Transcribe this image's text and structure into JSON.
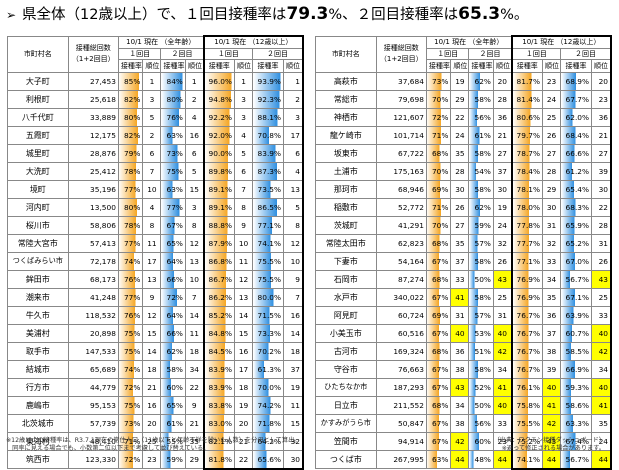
{
  "headline": {
    "arrow": "➢",
    "prefix": "県全体（12歳以上）で、",
    "dose1_label": "１回目接種率は",
    "dose1_value": "79.3",
    "sep": "%、",
    "dose2_label": "２回目接種率は",
    "dose2_value": "65.3",
    "suffix": "%。"
  },
  "table_headers": {
    "col_name": "市町村名",
    "col_pop": "接種総回数\n（1+2回目）",
    "all_age": "10/1 現在 （全年齢）",
    "age12": "10/1 現在 （12歳以上）",
    "dose1": "１回目",
    "dose2": "２回目",
    "rate": "接種率",
    "rank": "順位"
  },
  "colors": {
    "dose1_fill": "#f5a623",
    "dose2_fill": "#2f8fe0",
    "highlight": "#ffff00"
  },
  "left_rows": [
    {
      "name": "大子町",
      "pop": "27,453",
      "a1": "85%",
      "a1r": "1",
      "a2": "84%",
      "a2r": "1",
      "b1": "96.0%",
      "b1r": "1",
      "b2": "93.9%",
      "b2r": "1",
      "v1": 85,
      "v2": 84,
      "v3": 96.0,
      "v4": 93.9
    },
    {
      "name": "利根町",
      "pop": "25,618",
      "a1": "82%",
      "a1r": "3",
      "a2": "80%",
      "a2r": "2",
      "b1": "94.8%",
      "b1r": "3",
      "b2": "92.3%",
      "b2r": "2",
      "v1": 82,
      "v2": 80,
      "v3": 94.8,
      "v4": 92.3
    },
    {
      "name": "八千代町",
      "pop": "33,889",
      "a1": "80%",
      "a1r": "5",
      "a2": "76%",
      "a2r": "4",
      "b1": "92.2%",
      "b1r": "3",
      "b2": "88.1%",
      "b2r": "3",
      "v1": 80,
      "v2": 76,
      "v3": 92.2,
      "v4": 88.1
    },
    {
      "name": "五霞町",
      "pop": "12,175",
      "a1": "82%",
      "a1r": "2",
      "a2": "63%",
      "a2r": "16",
      "b1": "92.0%",
      "b1r": "4",
      "b2": "70.8%",
      "b2r": "17",
      "v1": 82,
      "v2": 63,
      "v3": 92.0,
      "v4": 70.8
    },
    {
      "name": "城里町",
      "pop": "28,876",
      "a1": "79%",
      "a1r": "6",
      "a2": "73%",
      "a2r": "6",
      "b1": "90.0%",
      "b1r": "5",
      "b2": "83.9%",
      "b2r": "6",
      "v1": 79,
      "v2": 73,
      "v3": 90.0,
      "v4": 83.9
    },
    {
      "name": "大洗町",
      "pop": "25,412",
      "a1": "78%",
      "a1r": "7",
      "a2": "75%",
      "a2r": "5",
      "b1": "89.8%",
      "b1r": "6",
      "b2": "87.3%",
      "b2r": "4",
      "v1": 78,
      "v2": 75,
      "v3": 89.8,
      "v4": 87.3
    },
    {
      "name": "境町",
      "pop": "35,196",
      "a1": "77%",
      "a1r": "10",
      "a2": "63%",
      "a2r": "15",
      "b1": "89.1%",
      "b1r": "7",
      "b2": "73.5%",
      "b2r": "13",
      "v1": 77,
      "v2": 63,
      "v3": 89.1,
      "v4": 73.5
    },
    {
      "name": "河内町",
      "pop": "13,500",
      "a1": "80%",
      "a1r": "4",
      "a2": "77%",
      "a2r": "3",
      "b1": "89.1%",
      "b1r": "8",
      "b2": "86.5%",
      "b2r": "5",
      "v1": 80,
      "v2": 77,
      "v3": 89.1,
      "v4": 86.5
    },
    {
      "name": "桜川市",
      "pop": "58,806",
      "a1": "78%",
      "a1r": "8",
      "a2": "67%",
      "a2r": "8",
      "b1": "88.8%",
      "b1r": "9",
      "b2": "77.1%",
      "b2r": "8",
      "v1": 78,
      "v2": 67,
      "v3": 88.8,
      "v4": 77.1
    },
    {
      "name": "常陸大宮市",
      "pop": "57,413",
      "a1": "77%",
      "a1r": "11",
      "a2": "65%",
      "a2r": "12",
      "b1": "87.9%",
      "b1r": "10",
      "b2": "74.1%",
      "b2r": "12",
      "v1": 77,
      "v2": 65,
      "v3": 87.9,
      "v4": 74.1
    },
    {
      "name": "つくばみらい市",
      "pop": "72,178",
      "a1": "74%",
      "a1r": "17",
      "a2": "64%",
      "a2r": "13",
      "b1": "86.8%",
      "b1r": "11",
      "b2": "75.5%",
      "b2r": "10",
      "v1": 74,
      "v2": 64,
      "v3": 86.8,
      "v4": 75.5
    },
    {
      "name": "鉾田市",
      "pop": "68,173",
      "a1": "76%",
      "a1r": "13",
      "a2": "66%",
      "a2r": "10",
      "b1": "86.7%",
      "b1r": "12",
      "b2": "75.5%",
      "b2r": "9",
      "v1": 76,
      "v2": 66,
      "v3": 86.7,
      "v4": 75.5
    },
    {
      "name": "潮来市",
      "pop": "41,248",
      "a1": "77%",
      "a1r": "9",
      "a2": "72%",
      "a2r": "7",
      "b1": "86.2%",
      "b1r": "13",
      "b2": "80.0%",
      "b2r": "7",
      "v1": 77,
      "v2": 72,
      "v3": 86.2,
      "v4": 80.0
    },
    {
      "name": "牛久市",
      "pop": "118,532",
      "a1": "76%",
      "a1r": "12",
      "a2": "64%",
      "a2r": "14",
      "b1": "85.2%",
      "b1r": "14",
      "b2": "71.5%",
      "b2r": "16",
      "v1": 76,
      "v2": 64,
      "v3": 85.2,
      "v4": 71.5
    },
    {
      "name": "美浦村",
      "pop": "20,898",
      "a1": "75%",
      "a1r": "15",
      "a2": "66%",
      "a2r": "11",
      "b1": "84.8%",
      "b1r": "15",
      "b2": "73.3%",
      "b2r": "14",
      "v1": 75,
      "v2": 66,
      "v3": 84.8,
      "v4": 73.3
    },
    {
      "name": "取手市",
      "pop": "147,533",
      "a1": "75%",
      "a1r": "14",
      "a2": "62%",
      "a2r": "18",
      "b1": "84.5%",
      "b1r": "16",
      "b2": "70.2%",
      "b2r": "18",
      "v1": 75,
      "v2": 62,
      "v3": 84.5,
      "v4": 70.2
    },
    {
      "name": "結城市",
      "pop": "65,689",
      "a1": "74%",
      "a1r": "18",
      "a2": "58%",
      "a2r": "34",
      "b1": "83.9%",
      "b1r": "17",
      "b2": "61.3%",
      "b2r": "37",
      "v1": 74,
      "v2": 58,
      "v3": 83.9,
      "v4": 61.3
    },
    {
      "name": "行方市",
      "pop": "44,779",
      "a1": "72%",
      "a1r": "21",
      "a2": "60%",
      "a2r": "22",
      "b1": "83.9%",
      "b1r": "18",
      "b2": "70.0%",
      "b2r": "19",
      "v1": 72,
      "v2": 60,
      "v3": 83.9,
      "v4": 70.0
    },
    {
      "name": "鹿嶋市",
      "pop": "95,153",
      "a1": "75%",
      "a1r": "16",
      "a2": "65%",
      "a2r": "9",
      "b1": "83.8%",
      "b1r": "19",
      "b2": "74.2%",
      "b2r": "11",
      "v1": 75,
      "v2": 65,
      "v3": 83.8,
      "v4": 74.2
    },
    {
      "name": "北茨城市",
      "pop": "57,739",
      "a1": "73%",
      "a1r": "20",
      "a2": "61%",
      "a2r": "21",
      "b1": "83.0%",
      "b1r": "20",
      "b2": "71.8%",
      "b2r": "15",
      "v1": 73,
      "v2": 61,
      "v3": 83.0,
      "v4": 71.8
    },
    {
      "name": "東海村",
      "pop": "48,410",
      "a1": "71%",
      "a1r": "25",
      "a2": "55%",
      "a2r": "35",
      "b1": "82.1%",
      "b1r": "21",
      "b2": "64.2%",
      "b2r": "32",
      "v1": 71,
      "v2": 55,
      "v3": 82.1,
      "v4": 64.2
    },
    {
      "name": "筑西市",
      "pop": "123,330",
      "a1": "72%",
      "a1r": "23",
      "a2": "59%",
      "a2r": "29",
      "b1": "81.8%",
      "b1r": "22",
      "b2": "65.6%",
      "b2r": "30",
      "v1": 72,
      "v2": 59,
      "v3": 81.8,
      "v4": 65.6
    }
  ],
  "right_rows": [
    {
      "name": "高萩市",
      "pop": "37,684",
      "a1": "73%",
      "a1r": "19",
      "a2": "62%",
      "a2r": "20",
      "b1": "81.7%",
      "b1r": "23",
      "b2": "68.9%",
      "b2r": "20",
      "v1": 73,
      "v2": 62,
      "v3": 81.7,
      "v4": 68.9
    },
    {
      "name": "常総市",
      "pop": "79,698",
      "a1": "70%",
      "a1r": "29",
      "a2": "58%",
      "a2r": "28",
      "b1": "81.4%",
      "b1r": "24",
      "b2": "67.7%",
      "b2r": "23",
      "v1": 70,
      "v2": 58,
      "v3": 81.4,
      "v4": 67.7
    },
    {
      "name": "神栖市",
      "pop": "121,607",
      "a1": "72%",
      "a1r": "22",
      "a2": "56%",
      "a2r": "36",
      "b1": "80.6%",
      "b1r": "25",
      "b2": "62.0%",
      "b2r": "36",
      "v1": 72,
      "v2": 56,
      "v3": 80.6,
      "v4": 62.0
    },
    {
      "name": "龍ケ崎市",
      "pop": "101,714",
      "a1": "71%",
      "a1r": "24",
      "a2": "61%",
      "a2r": "21",
      "b1": "79.7%",
      "b1r": "26",
      "b2": "68.4%",
      "b2r": "21",
      "v1": 71,
      "v2": 61,
      "v3": 79.7,
      "v4": 68.4
    },
    {
      "name": "坂東市",
      "pop": "67,722",
      "a1": "68%",
      "a1r": "35",
      "a2": "58%",
      "a2r": "27",
      "b1": "78.7%",
      "b1r": "27",
      "b2": "66.6%",
      "b2r": "27",
      "v1": 68,
      "v2": 58,
      "v3": 78.7,
      "v4": 66.6
    },
    {
      "name": "土浦市",
      "pop": "175,163",
      "a1": "70%",
      "a1r": "28",
      "a2": "54%",
      "a2r": "37",
      "b1": "78.4%",
      "b1r": "28",
      "b2": "61.2%",
      "b2r": "39",
      "v1": 70,
      "v2": 54,
      "v3": 78.4,
      "v4": 61.2
    },
    {
      "name": "那珂市",
      "pop": "68,946",
      "a1": "69%",
      "a1r": "30",
      "a2": "58%",
      "a2r": "30",
      "b1": "78.1%",
      "b1r": "29",
      "b2": "65.4%",
      "b2r": "30",
      "v1": 69,
      "v2": 58,
      "v3": 78.1,
      "v4": 65.4
    },
    {
      "name": "稲敷市",
      "pop": "52,772",
      "a1": "71%",
      "a1r": "26",
      "a2": "62%",
      "a2r": "19",
      "b1": "78.0%",
      "b1r": "30",
      "b2": "68.3%",
      "b2r": "22",
      "v1": 71,
      "v2": 62,
      "v3": 78.0,
      "v4": 68.3
    },
    {
      "name": "茨城町",
      "pop": "41,291",
      "a1": "70%",
      "a1r": "27",
      "a2": "59%",
      "a2r": "24",
      "b1": "77.8%",
      "b1r": "31",
      "b2": "65.9%",
      "b2r": "28",
      "v1": 70,
      "v2": 59,
      "v3": 77.8,
      "v4": 65.9
    },
    {
      "name": "常陸太田市",
      "pop": "62,823",
      "a1": "68%",
      "a1r": "35",
      "a2": "57%",
      "a2r": "32",
      "b1": "77.7%",
      "b1r": "32",
      "b2": "65.2%",
      "b2r": "31",
      "v1": 68,
      "v2": 57,
      "v3": 77.7,
      "v4": 65.2
    },
    {
      "name": "下妻市",
      "pop": "54,164",
      "a1": "67%",
      "a1r": "37",
      "a2": "58%",
      "a2r": "26",
      "b1": "77.1%",
      "b1r": "33",
      "b2": "67.0%",
      "b2r": "26",
      "v1": 67,
      "v2": 58,
      "v3": 77.1,
      "v4": 67.0
    },
    {
      "name": "石岡市",
      "pop": "87,274",
      "a1": "68%",
      "a1r": "33",
      "a2": "50%",
      "a2r": "43",
      "b1": "76.9%",
      "b1r": "34",
      "b2": "56.7%",
      "b2r": "43",
      "v1": 68,
      "v2": 50,
      "v3": 76.9,
      "v4": 56.7
    },
    {
      "name": "水戸市",
      "pop": "340,022",
      "a1": "67%",
      "a1r": "41",
      "a2": "58%",
      "a2r": "25",
      "b1": "76.9%",
      "b1r": "35",
      "b2": "67.1%",
      "b2r": "25",
      "v1": 67,
      "v2": 58,
      "v3": 76.9,
      "v4": 67.1
    },
    {
      "name": "阿見町",
      "pop": "60,724",
      "a1": "69%",
      "a1r": "31",
      "a2": "57%",
      "a2r": "31",
      "b1": "76.7%",
      "b1r": "36",
      "b2": "63.9%",
      "b2r": "33",
      "v1": 69,
      "v2": 57,
      "v3": 76.7,
      "v4": 63.9
    },
    {
      "name": "小美玉市",
      "pop": "60,516",
      "a1": "67%",
      "a1r": "40",
      "a2": "53%",
      "a2r": "40",
      "b1": "76.7%",
      "b1r": "37",
      "b2": "60.7%",
      "b2r": "40",
      "v1": 67,
      "v2": 53,
      "v3": 76.7,
      "v4": 60.7
    },
    {
      "name": "古河市",
      "pop": "169,324",
      "a1": "68%",
      "a1r": "36",
      "a2": "51%",
      "a2r": "42",
      "b1": "76.7%",
      "b1r": "38",
      "b2": "58.5%",
      "b2r": "42",
      "v1": 68,
      "v2": 51,
      "v3": 76.7,
      "v4": 58.5
    },
    {
      "name": "守谷市",
      "pop": "76,663",
      "a1": "67%",
      "a1r": "38",
      "a2": "58%",
      "a2r": "34",
      "b1": "76.7%",
      "b1r": "39",
      "b2": "66.9%",
      "b2r": "34",
      "v1": 67,
      "v2": 58,
      "v3": 76.7,
      "v4": 66.9
    },
    {
      "name": "ひたちなか市",
      "pop": "187,293",
      "a1": "67%",
      "a1r": "43",
      "a2": "52%",
      "a2r": "41",
      "b1": "76.1%",
      "b1r": "40",
      "b2": "59.3%",
      "b2r": "40",
      "v1": 67,
      "v2": 52,
      "v3": 76.1,
      "v4": 59.3
    },
    {
      "name": "日立市",
      "pop": "211,552",
      "a1": "68%",
      "a1r": "34",
      "a2": "50%",
      "a2r": "40",
      "b1": "75.8%",
      "b1r": "41",
      "b2": "58.6%",
      "b2r": "41",
      "v1": 68,
      "v2": 50,
      "v3": 75.8,
      "v4": 58.6
    },
    {
      "name": "かすみがうら市",
      "pop": "50,847",
      "a1": "67%",
      "a1r": "38",
      "a2": "56%",
      "a2r": "33",
      "b1": "75.5%",
      "b1r": "42",
      "b2": "63.3%",
      "b2r": "35",
      "v1": 67,
      "v2": 56,
      "v3": 75.5,
      "v4": 63.3
    },
    {
      "name": "笠間市",
      "pop": "94,914",
      "a1": "67%",
      "a1r": "42",
      "a2": "60%",
      "a2r": "23",
      "b1": "75.2%",
      "b1r": "43",
      "b2": "67.4%",
      "b2r": "24",
      "v1": 67,
      "v2": 60,
      "v3": 75.2,
      "v4": 67.4
    },
    {
      "name": "つくば市",
      "pop": "267,995",
      "a1": "63%",
      "a1r": "44",
      "a2": "48%",
      "a2r": "44",
      "b1": "74.1%",
      "b1r": "44",
      "b2": "56.7%",
      "b2r": "44",
      "v1": 63,
      "v2": 48,
      "v3": 74.1,
      "v4": 56.7
    }
  ],
  "footnotes": {
    "left_1": "※12歳以上の接種率は、R3.7.1現在の常住人口（11歳以下と年齢不詳を除いた人数）を分母として算出。",
    "left_2": "　同率に見える場合でも、小数第二位以下まで考慮して並び替えている。",
    "right_1": "（出典：ワクチン接種ダッシュボード）",
    "right_2": "※避って修正される場合があります。"
  }
}
